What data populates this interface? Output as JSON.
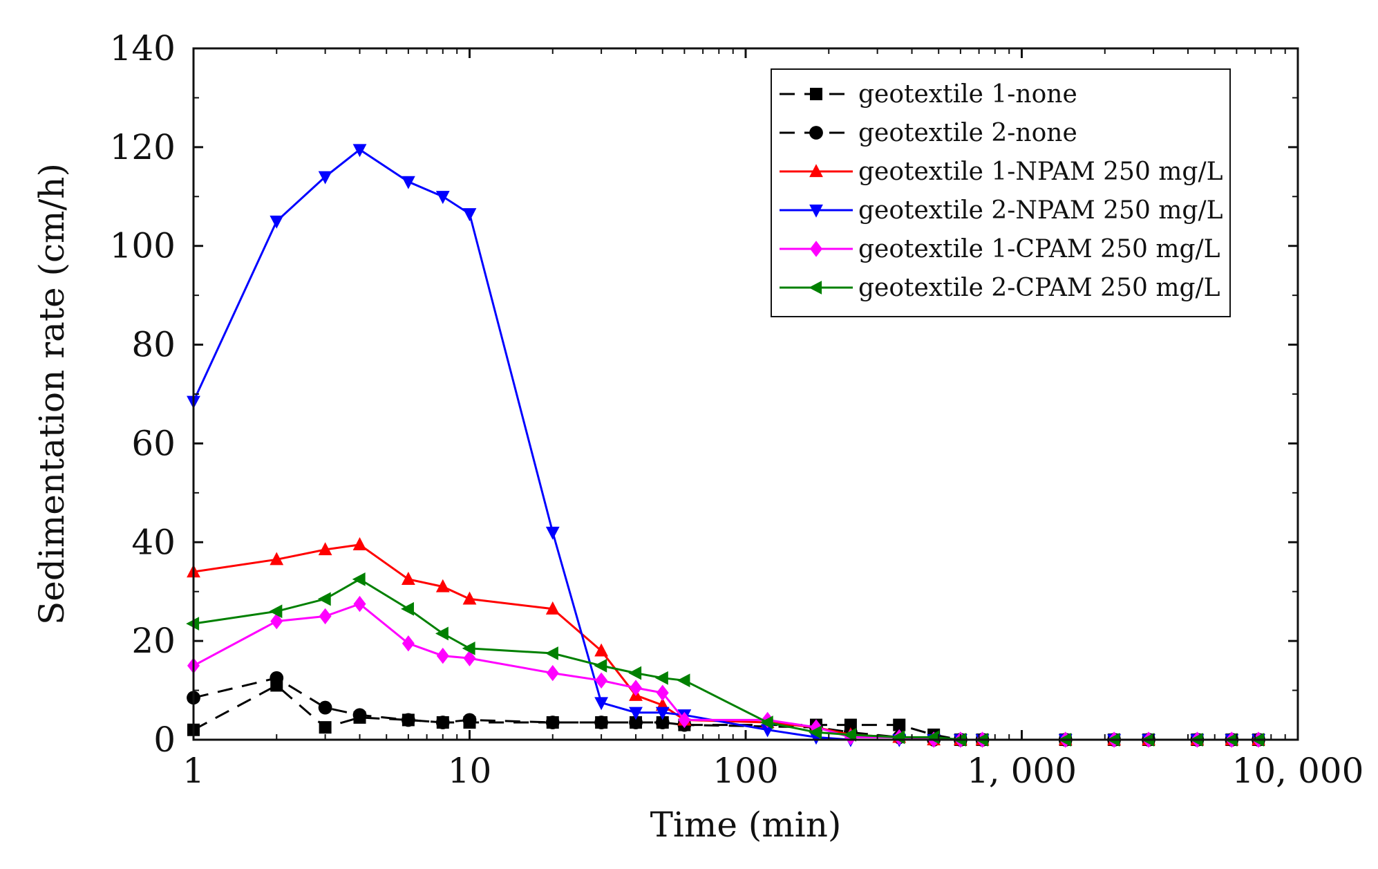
{
  "chart_data": {
    "type": "line",
    "title": "",
    "xlabel": "Time (min)",
    "ylabel": "Sedimentation rate (cm/h)",
    "xscale": "log",
    "xlim": [
      1,
      10000
    ],
    "ylim": [
      0,
      140
    ],
    "x_ticks": [
      {
        "value": 1,
        "label": "1"
      },
      {
        "value": 10,
        "label": "10"
      },
      {
        "value": 100,
        "label": "100"
      },
      {
        "value": 1000,
        "label": "1, 000"
      },
      {
        "value": 10000,
        "label": "10, 000"
      }
    ],
    "y_ticks": [
      {
        "value": 0,
        "label": "0"
      },
      {
        "value": 20,
        "label": "20"
      },
      {
        "value": 40,
        "label": "40"
      },
      {
        "value": 60,
        "label": "60"
      },
      {
        "value": 80,
        "label": "80"
      },
      {
        "value": 100,
        "label": "100"
      },
      {
        "value": 120,
        "label": "120"
      },
      {
        "value": 140,
        "label": "140"
      }
    ],
    "legend_position": "top-right",
    "grid": false,
    "series": [
      {
        "name": "geotextile 1-none",
        "color": "#000000",
        "marker": "square",
        "dashed": true,
        "points": [
          [
            1,
            2
          ],
          [
            2,
            11
          ],
          [
            3,
            2.5
          ],
          [
            4,
            4.5
          ],
          [
            6,
            4
          ],
          [
            8,
            3.5
          ],
          [
            10,
            3.5
          ],
          [
            20,
            3.5
          ],
          [
            30,
            3.5
          ],
          [
            40,
            3.5
          ],
          [
            50,
            3.5
          ],
          [
            60,
            3
          ],
          [
            180,
            3
          ],
          [
            240,
            3
          ],
          [
            360,
            3
          ],
          [
            480,
            1
          ],
          [
            600,
            0
          ],
          [
            720,
            0
          ],
          [
            1440,
            0
          ],
          [
            2160,
            0
          ],
          [
            2880,
            0
          ],
          [
            4320,
            0
          ],
          [
            5760,
            0
          ],
          [
            7200,
            0
          ]
        ]
      },
      {
        "name": "geotextile 2-none",
        "color": "#000000",
        "marker": "circle",
        "dashed": true,
        "points": [
          [
            1,
            8.5
          ],
          [
            2,
            12.5
          ],
          [
            3,
            6.5
          ],
          [
            4,
            5
          ],
          [
            6,
            4
          ],
          [
            8,
            3.5
          ],
          [
            10,
            4
          ],
          [
            20,
            3.5
          ],
          [
            30,
            3.5
          ],
          [
            40,
            3.5
          ],
          [
            50,
            3.5
          ],
          [
            60,
            3
          ],
          [
            180,
            2.5
          ],
          [
            240,
            1.5
          ],
          [
            360,
            0.5
          ],
          [
            480,
            0
          ],
          [
            600,
            0
          ],
          [
            720,
            0
          ],
          [
            1440,
            0
          ],
          [
            2160,
            0
          ],
          [
            2880,
            0
          ],
          [
            4320,
            0
          ],
          [
            5760,
            0
          ],
          [
            7200,
            0
          ]
        ]
      },
      {
        "name": "geotextile 1-NPAM 250 mg/L",
        "color": "#ff0000",
        "marker": "triangle-up",
        "dashed": false,
        "points": [
          [
            1,
            34
          ],
          [
            2,
            36.5
          ],
          [
            3,
            38.5
          ],
          [
            4,
            39.5
          ],
          [
            6,
            32.5
          ],
          [
            8,
            31
          ],
          [
            10,
            28.5
          ],
          [
            20,
            26.5
          ],
          [
            30,
            18
          ],
          [
            40,
            9
          ],
          [
            50,
            7
          ],
          [
            60,
            4
          ],
          [
            120,
            3.5
          ],
          [
            180,
            2.5
          ],
          [
            240,
            1
          ],
          [
            360,
            0.5
          ],
          [
            480,
            0
          ],
          [
            600,
            0
          ],
          [
            720,
            0
          ],
          [
            1440,
            0
          ],
          [
            2160,
            0
          ],
          [
            2880,
            0
          ],
          [
            4320,
            0
          ],
          [
            5760,
            0
          ],
          [
            7200,
            0
          ]
        ]
      },
      {
        "name": "geotextile 2-NPAM 250 mg/L",
        "color": "#0000ff",
        "marker": "triangle-down",
        "dashed": false,
        "points": [
          [
            1,
            68.5
          ],
          [
            2,
            105
          ],
          [
            3,
            114
          ],
          [
            4,
            119.5
          ],
          [
            6,
            113
          ],
          [
            8,
            110
          ],
          [
            10,
            106.5
          ],
          [
            20,
            42
          ],
          [
            30,
            7.5
          ],
          [
            40,
            5.5
          ],
          [
            50,
            5.5
          ],
          [
            60,
            5
          ],
          [
            120,
            2
          ],
          [
            180,
            0.5
          ],
          [
            240,
            0
          ],
          [
            360,
            0
          ],
          [
            480,
            0
          ],
          [
            600,
            0
          ],
          [
            720,
            0
          ],
          [
            1440,
            0
          ],
          [
            2160,
            0
          ],
          [
            2880,
            0
          ],
          [
            4320,
            0
          ],
          [
            5760,
            0
          ],
          [
            7200,
            0
          ]
        ]
      },
      {
        "name": "geotextile 1-CPAM 250 mg/L",
        "color": "#ff00ff",
        "marker": "diamond",
        "dashed": false,
        "points": [
          [
            1,
            15
          ],
          [
            2,
            24
          ],
          [
            3,
            25
          ],
          [
            4,
            27.5
          ],
          [
            6,
            19.5
          ],
          [
            8,
            17
          ],
          [
            10,
            16.5
          ],
          [
            20,
            13.5
          ],
          [
            30,
            12
          ],
          [
            40,
            10.5
          ],
          [
            50,
            9.5
          ],
          [
            60,
            4
          ],
          [
            120,
            4
          ],
          [
            180,
            2.5
          ],
          [
            240,
            0.5
          ],
          [
            360,
            0.5
          ],
          [
            480,
            0
          ],
          [
            600,
            0
          ],
          [
            720,
            0
          ],
          [
            1440,
            0
          ],
          [
            2160,
            0
          ],
          [
            2880,
            0
          ],
          [
            4320,
            0
          ],
          [
            5760,
            0
          ],
          [
            7200,
            0
          ]
        ]
      },
      {
        "name": "geotextile 2-CPAM 250 mg/L",
        "color": "#008000",
        "marker": "triangle-left",
        "dashed": false,
        "points": [
          [
            1,
            23.5
          ],
          [
            2,
            26
          ],
          [
            3,
            28.5
          ],
          [
            4,
            32.5
          ],
          [
            6,
            26.5
          ],
          [
            8,
            21.5
          ],
          [
            10,
            18.5
          ],
          [
            20,
            17.5
          ],
          [
            30,
            15
          ],
          [
            40,
            13.5
          ],
          [
            50,
            12.5
          ],
          [
            60,
            12
          ],
          [
            120,
            3.5
          ],
          [
            180,
            1.5
          ],
          [
            240,
            1
          ],
          [
            360,
            0.5
          ],
          [
            480,
            0.5
          ],
          [
            600,
            0
          ],
          [
            720,
            0
          ],
          [
            1440,
            0
          ],
          [
            2160,
            0
          ],
          [
            2880,
            0
          ],
          [
            4320,
            0
          ],
          [
            5760,
            0
          ],
          [
            7200,
            0
          ]
        ]
      }
    ]
  }
}
